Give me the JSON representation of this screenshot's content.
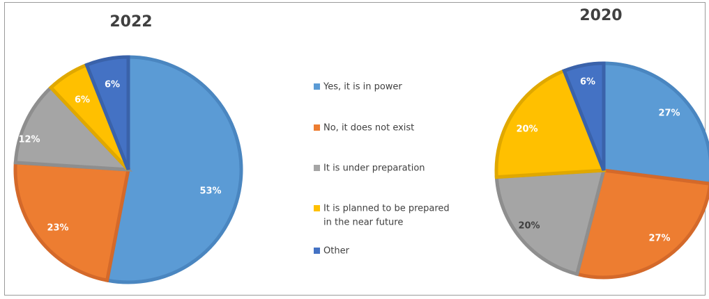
{
  "chart_data": [
    {
      "type": "pie",
      "title": "2022",
      "slices": [
        {
          "label": "Yes, it is in power",
          "value": 53,
          "text": "53%",
          "color": "#5B9BD5",
          "stroke": "#4a86c0",
          "label_color": "#ffffff"
        },
        {
          "label": "No, it does not exist",
          "value": 23,
          "text": "23%",
          "color": "#ED7D31",
          "stroke": "#d4692a",
          "label_color": "#ffffff"
        },
        {
          "label": "It is under preparation",
          "value": 12,
          "text": "12%",
          "color": "#A5A5A5",
          "stroke": "#8e8e8e",
          "label_color": "#ffffff"
        },
        {
          "label": "It is planned to be prepared in the near future",
          "value": 6,
          "text": "6%",
          "color": "#FFC000",
          "stroke": "#e0a800",
          "label_color": "#ffffff"
        },
        {
          "label": "Other",
          "value": 6,
          "text": "6%",
          "color": "#4472C4",
          "stroke": "#3a62aa",
          "label_color": "#ffffff"
        }
      ]
    },
    {
      "type": "pie",
      "title": "2020",
      "slices": [
        {
          "label": "Yes, it is in power",
          "value": 27,
          "text": "27%",
          "color": "#5B9BD5",
          "stroke": "#4a86c0",
          "label_color": "#ffffff"
        },
        {
          "label": "No, it does not exist",
          "value": 27,
          "text": "27%",
          "color": "#ED7D31",
          "stroke": "#d4692a",
          "label_color": "#ffffff"
        },
        {
          "label": "It is under preparation",
          "value": 20,
          "text": "20%",
          "color": "#A5A5A5",
          "stroke": "#8e8e8e",
          "label_color": "#404040"
        },
        {
          "label": "It is planned to be prepared in the near future",
          "value": 20,
          "text": "20%",
          "color": "#FFC000",
          "stroke": "#e0a800",
          "label_color": "#ffffff"
        },
        {
          "label": "Other",
          "value": 6,
          "text": "6%",
          "color": "#4472C4",
          "stroke": "#3a62aa",
          "label_color": "#ffffff"
        }
      ]
    }
  ],
  "legend": {
    "items": [
      {
        "lines": [
          "Yes, it is in power"
        ],
        "color": "#5B9BD5"
      },
      {
        "lines": [
          "No, it does not exist"
        ],
        "color": "#ED7D31"
      },
      {
        "lines": [
          "It is under preparation"
        ],
        "color": "#A5A5A5"
      },
      {
        "lines": [
          "It is planned to be prepared",
          "in the near future"
        ],
        "color": "#FFC000"
      },
      {
        "lines": [
          "Other"
        ],
        "color": "#4472C4"
      }
    ]
  }
}
